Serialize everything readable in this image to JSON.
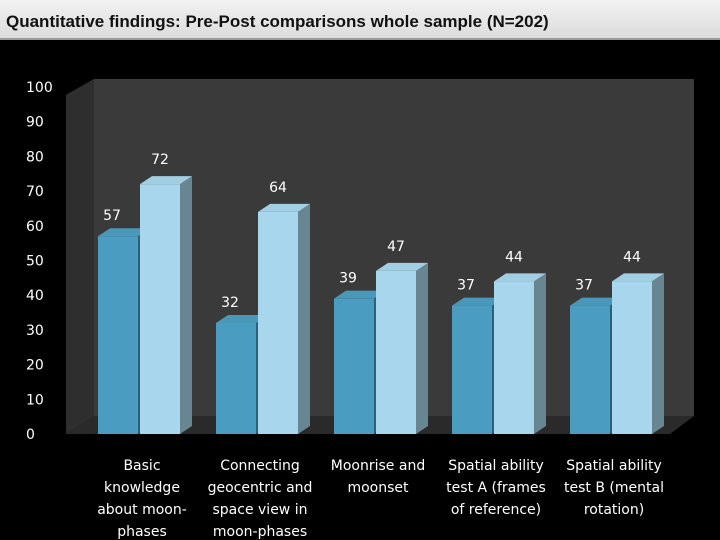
{
  "title": "Quantitative findings: Pre-Post comparisons whole sample (N=202)",
  "colors": {
    "pre": "#4a9cc0",
    "post": "#a8d6ec",
    "wall": "#3a3a3a",
    "floor": "#2a2a2a"
  },
  "chart_data": {
    "type": "bar",
    "categories": [
      [
        "Basic",
        "knowledge",
        "about moon-",
        "phases"
      ],
      [
        "Connecting",
        "geocentric and",
        "space view in",
        "moon-phases"
      ],
      [
        "Moonrise and",
        "moonset"
      ],
      [
        "Spatial ability",
        "test A (frames",
        "of reference)"
      ],
      [
        "Spatial ability",
        "test B (mental",
        "rotation)"
      ]
    ],
    "series": [
      {
        "values": [
          57,
          32,
          39,
          37,
          37
        ]
      },
      {
        "values": [
          72,
          64,
          47,
          44,
          44
        ]
      }
    ],
    "ylim": [
      0,
      100
    ],
    "yticks": [
      "0",
      "10",
      "20",
      "30",
      "40",
      "50",
      "60",
      "70",
      "80",
      "90",
      "100"
    ],
    "grid": false,
    "legend": "none"
  }
}
